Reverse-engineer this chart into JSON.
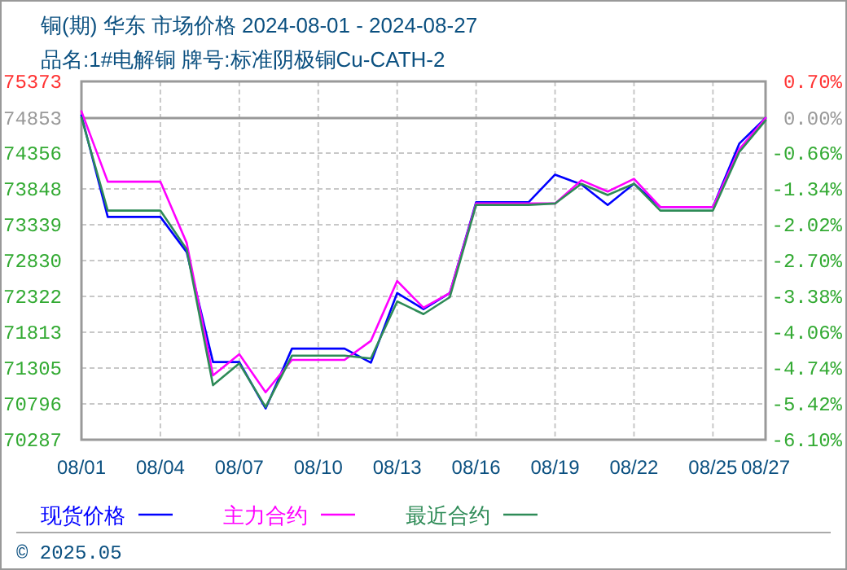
{
  "chart_data": {
    "type": "line",
    "title": "铜(期) 华东 市场价格 2024-08-01 - 2024-08-27",
    "subtitle": "品名:1#电解铜 牌号:标准阴极铜Cu-CATH-2",
    "x": [
      "2024-08-01",
      "2024-08-02",
      "2024-08-04",
      "2024-08-05",
      "2024-08-06",
      "2024-08-07",
      "2024-08-08",
      "2024-08-09",
      "2024-08-11",
      "2024-08-12",
      "2024-08-13",
      "2024-08-14",
      "2024-08-15",
      "2024-08-16",
      "2024-08-18",
      "2024-08-19",
      "2024-08-20",
      "2024-08-21",
      "2024-08-22",
      "2024-08-23",
      "2024-08-25",
      "2024-08-26",
      "2024-08-27"
    ],
    "series": [
      {
        "name": "现货价格",
        "color": "#0000ff",
        "values": [
          74890,
          73450,
          73450,
          72950,
          71390,
          71390,
          70730,
          71580,
          71580,
          71380,
          72370,
          72140,
          72370,
          73660,
          73660,
          74050,
          73910,
          73620,
          73920,
          73590,
          73590,
          74490,
          74853
        ]
      },
      {
        "name": "主力合约",
        "color": "#ff00ff",
        "values": [
          74950,
          73950,
          73950,
          73080,
          71200,
          71500,
          70960,
          71420,
          71420,
          71690,
          72540,
          72160,
          72370,
          73640,
          73640,
          73640,
          73970,
          73810,
          73990,
          73590,
          73590,
          74410,
          74853
        ]
      },
      {
        "name": "最近合约",
        "color": "#2e8b57",
        "values": [
          74860,
          73540,
          73540,
          72990,
          71060,
          71370,
          70750,
          71480,
          71480,
          71440,
          72250,
          72070,
          72310,
          73620,
          73620,
          73640,
          73920,
          73760,
          73920,
          73540,
          73540,
          74370,
          74820
        ]
      }
    ],
    "xlim": [
      "2024-08-01",
      "2024-08-27"
    ],
    "xticks": [
      {
        "value": "2024-08-01",
        "label": "08/01"
      },
      {
        "value": "2024-08-04",
        "label": "08/04"
      },
      {
        "value": "2024-08-07",
        "label": "08/07"
      },
      {
        "value": "2024-08-10",
        "label": "08/10"
      },
      {
        "value": "2024-08-13",
        "label": "08/13"
      },
      {
        "value": "2024-08-16",
        "label": "08/16"
      },
      {
        "value": "2024-08-19",
        "label": "08/19"
      },
      {
        "value": "2024-08-22",
        "label": "08/22"
      },
      {
        "value": "2024-08-25",
        "label": "08/25"
      },
      {
        "value": "2024-08-27",
        "label": "08/27"
      }
    ],
    "ylim": [
      70287,
      75373
    ],
    "yticks": [
      75373,
      74853,
      74356,
      73848,
      73339,
      72830,
      72322,
      71813,
      71305,
      70796,
      70287
    ],
    "y2lim": [
      -6.1,
      0.7
    ],
    "y2ticks": [
      {
        "value": 0.7,
        "label": "0.70%"
      },
      {
        "value": 0.0,
        "label": "0.00%"
      },
      {
        "value": -0.66,
        "label": "-0.66%"
      },
      {
        "value": -1.34,
        "label": "-1.34%"
      },
      {
        "value": -2.02,
        "label": "-2.02%"
      },
      {
        "value": -2.7,
        "label": "-2.70%"
      },
      {
        "value": -3.38,
        "label": "-3.38%"
      },
      {
        "value": -4.06,
        "label": "-4.06%"
      },
      {
        "value": -4.74,
        "label": "-4.74%"
      },
      {
        "value": -5.42,
        "label": "-5.42%"
      },
      {
        "value": -6.1,
        "label": "-6.10%"
      }
    ],
    "ref_lines": [
      {
        "axis": "y",
        "value": 74853,
        "color": "#999999"
      }
    ],
    "grid": true,
    "legend": "bottom",
    "line_style": "solid",
    "marker": "none",
    "annotations": [
      "© 2025.05"
    ]
  }
}
